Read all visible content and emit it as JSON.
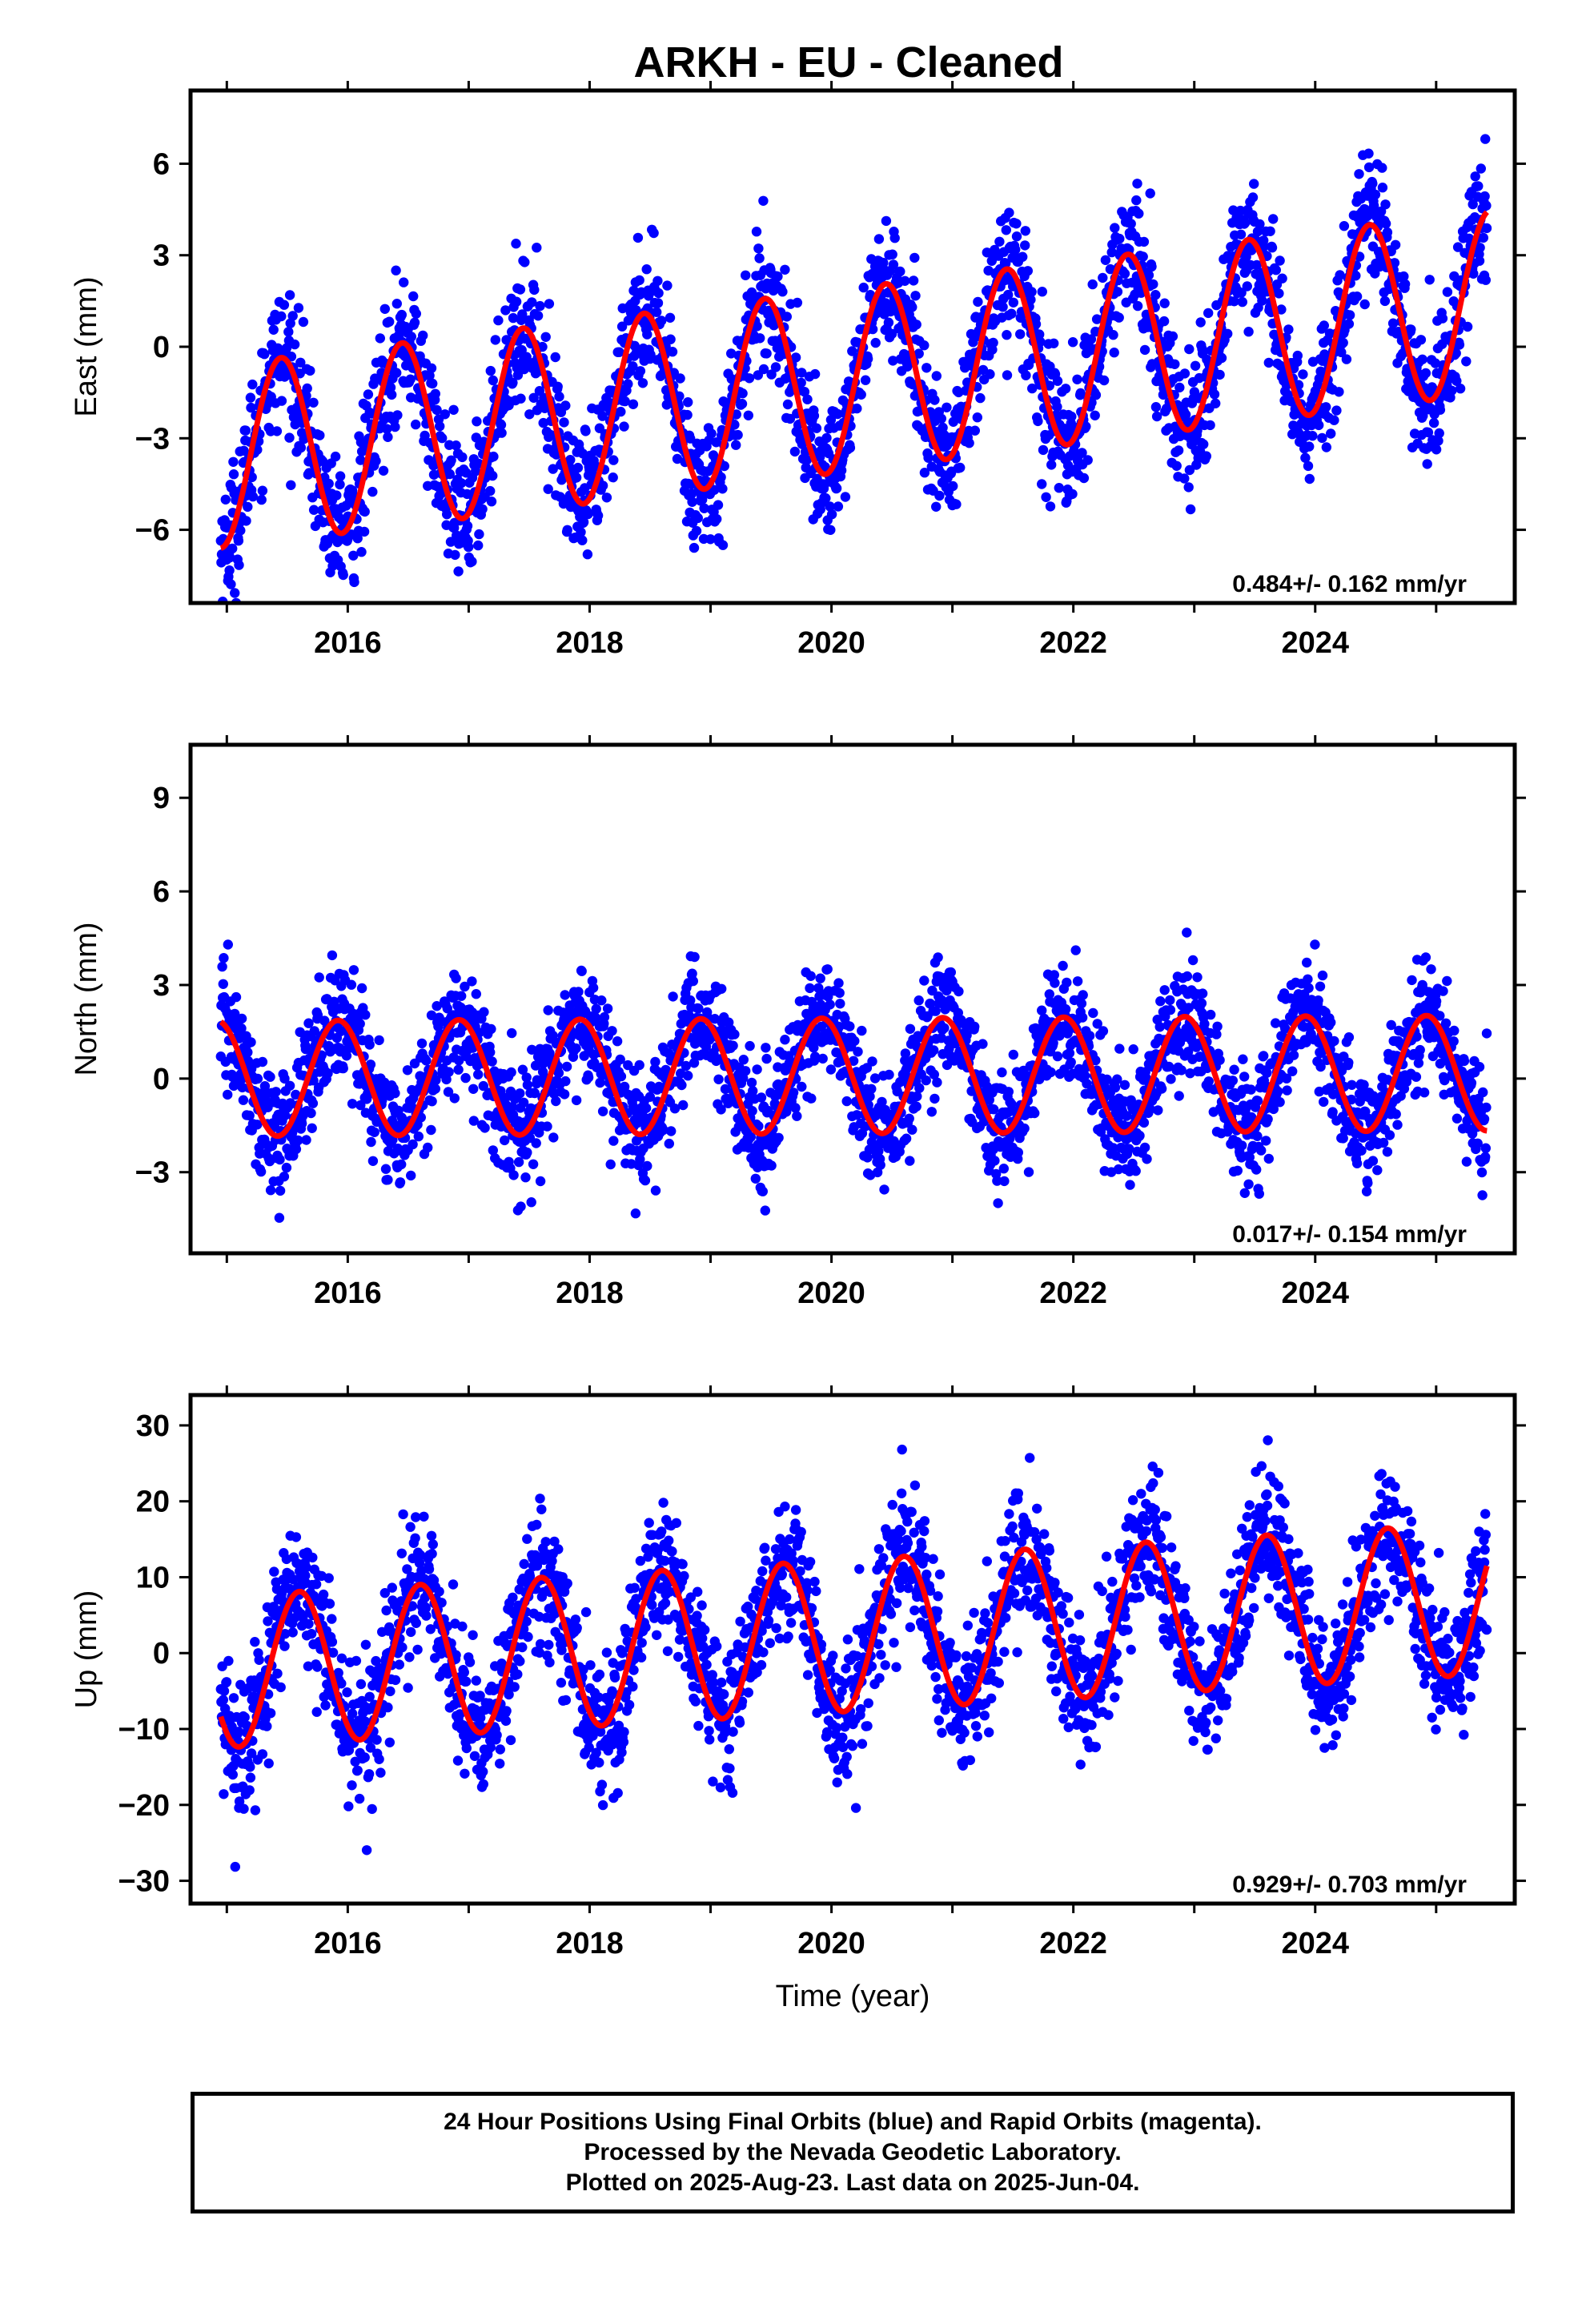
{
  "title": "ARKH  - EU - Cleaned",
  "chart_data": [
    {
      "type": "scatter",
      "component": "East",
      "ylabel": "East (mm)",
      "xlabel": "",
      "xlim": [
        2014.7,
        2025.65
      ],
      "ylim": [
        -8.4,
        8.4
      ],
      "xticks": [
        2016,
        2018,
        2020,
        2022,
        2024
      ],
      "yticks": [
        -6,
        -3,
        0,
        3,
        6
      ],
      "rate_label": "0.484+/- 0.162 mm/yr",
      "trend_start_mm": -3.6,
      "rate_mm_per_yr": 0.484,
      "seasonal_amplitude_mm": 3.0,
      "seasonal_phase_peak": 0.45,
      "scatter_sd_mm": 1.1,
      "x_start": 2014.95,
      "x_end": 2025.42,
      "colors": {
        "points": "#0000ff",
        "model": "#ff0000"
      }
    },
    {
      "type": "scatter",
      "component": "North",
      "ylabel": "North (mm)",
      "xlabel": "",
      "xlim": [
        2014.7,
        2025.65
      ],
      "ylim": [
        -5.6,
        10.7
      ],
      "xticks": [
        2016,
        2018,
        2020,
        2022,
        2024
      ],
      "yticks": [
        -3,
        0,
        3,
        6,
        9
      ],
      "rate_label": "0.017+/- 0.154 mm/yr",
      "trend_start_mm": 0.0,
      "rate_mm_per_yr": 0.017,
      "seasonal_amplitude_mm": 1.85,
      "seasonal_phase_peak": 0.92,
      "scatter_sd_mm": 0.95,
      "x_start": 2014.95,
      "x_end": 2025.42,
      "colors": {
        "points": "#0000ff",
        "model": "#ff0000"
      }
    },
    {
      "type": "scatter",
      "component": "Up",
      "ylabel": "Up (mm)",
      "xlabel": "Time (year)",
      "xlim": [
        2014.7,
        2025.65
      ],
      "ylim": [
        -33,
        34
      ],
      "xticks": [
        2016,
        2018,
        2020,
        2022,
        2024
      ],
      "yticks": [
        -30,
        -20,
        -10,
        0,
        10,
        20,
        30
      ],
      "rate_label": "0.929+/- 0.703 mm/yr",
      "trend_start_mm": -2.5,
      "rate_mm_per_yr": 0.929,
      "seasonal_amplitude_mm": 10.0,
      "seasonal_phase_peak": 0.6,
      "scatter_sd_mm": 4.5,
      "x_start": 2014.95,
      "x_end": 2025.42,
      "colors": {
        "points": "#0000ff",
        "model": "#ff0000"
      }
    }
  ],
  "footer": {
    "line1": "24 Hour Positions Using Final Orbits (blue) and Rapid Orbits (magenta).",
    "line2": "Processed by the Nevada Geodetic Laboratory.",
    "line3": "Plotted on 2025-Aug-23. Last data on 2025-Jun-04."
  }
}
